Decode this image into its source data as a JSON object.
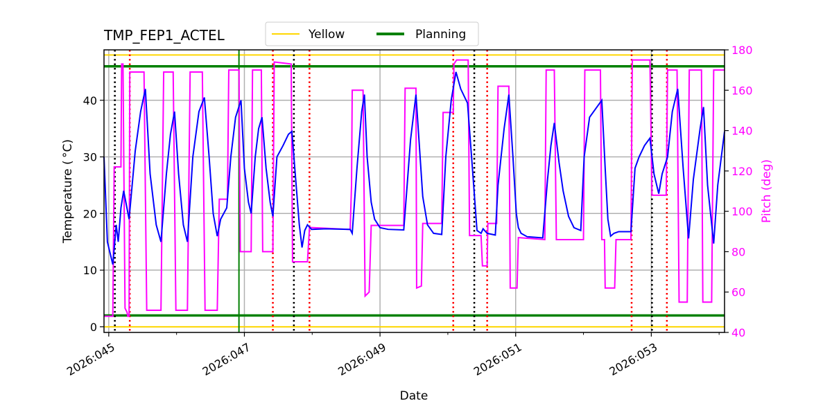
{
  "chart_data": {
    "type": "line",
    "title": "TMP_FEP1_ACTEL",
    "xlabel": "Date",
    "ylabel": "Temperature ($^\\circ$C)",
    "ylabel_display": "Temperature ( °C)",
    "y2label": "Pitch (deg)",
    "xlim": [
      44.93,
      54.08
    ],
    "ylim": [
      -1,
      48.9
    ],
    "y2lim": [
      40,
      180
    ],
    "grid": true,
    "legend_placement": "top-center, above plot",
    "x_ticks": [
      {
        "value": 45,
        "label": "2026:045"
      },
      {
        "value": 47,
        "label": "2026:047"
      },
      {
        "value": 49,
        "label": "2026:049"
      },
      {
        "value": 51,
        "label": "2026:051"
      },
      {
        "value": 53,
        "label": "2026:053"
      }
    ],
    "x_minor_ticks": [
      46,
      48,
      50,
      52,
      54
    ],
    "y_ticks": [
      0,
      10,
      20,
      30,
      40
    ],
    "y2_ticks": [
      40,
      60,
      80,
      100,
      120,
      140,
      160,
      180
    ],
    "colors": {
      "temperature": "#0000ff",
      "pitch": "#ff00ff",
      "yellow": "#ffd700",
      "planning": "#008000",
      "black_lines": "#000000",
      "red_lines": "#ff0000",
      "pitch_axis": "#ff00ff"
    },
    "legend": [
      {
        "name": "Yellow",
        "color": "#ffd700"
      },
      {
        "name": "Planning",
        "color": "#008000"
      }
    ],
    "yellow_limits": [
      0,
      48
    ],
    "planning_limits": [
      2,
      46
    ],
    "planning_vertical_x": 46.92,
    "black_dotted_x": [
      45.09,
      47.73,
      50.39,
      53.01
    ],
    "red_dotted_x": [
      45.31,
      47.42,
      47.96,
      50.08,
      50.58,
      52.71,
      53.23
    ],
    "temperature": [
      [
        44.93,
        30
      ],
      [
        44.98,
        15
      ],
      [
        45.06,
        11
      ],
      [
        45.11,
        18
      ],
      [
        45.14,
        15
      ],
      [
        45.18,
        21
      ],
      [
        45.22,
        24
      ],
      [
        45.3,
        19
      ],
      [
        45.39,
        31
      ],
      [
        45.47,
        38
      ],
      [
        45.54,
        42
      ],
      [
        45.61,
        27
      ],
      [
        45.7,
        18
      ],
      [
        45.77,
        15
      ],
      [
        45.85,
        27
      ],
      [
        45.91,
        34
      ],
      [
        45.97,
        38
      ],
      [
        46.03,
        27
      ],
      [
        46.1,
        18
      ],
      [
        46.16,
        15
      ],
      [
        46.24,
        30
      ],
      [
        46.33,
        38
      ],
      [
        46.41,
        40.5
      ],
      [
        46.48,
        30
      ],
      [
        46.54,
        20
      ],
      [
        46.6,
        16
      ],
      [
        46.65,
        19
      ],
      [
        46.74,
        21
      ],
      [
        46.8,
        30
      ],
      [
        46.87,
        37
      ],
      [
        46.95,
        40
      ],
      [
        47.0,
        28
      ],
      [
        47.06,
        22
      ],
      [
        47.1,
        20
      ],
      [
        47.16,
        30
      ],
      [
        47.21,
        35
      ],
      [
        47.26,
        37
      ],
      [
        47.32,
        28
      ],
      [
        47.38,
        22
      ],
      [
        47.42,
        19.5
      ],
      [
        47.48,
        30
      ],
      [
        47.57,
        32
      ],
      [
        47.65,
        34
      ],
      [
        47.7,
        34.5
      ],
      [
        47.77,
        24
      ],
      [
        47.81,
        18
      ],
      [
        47.85,
        14
      ],
      [
        47.89,
        17
      ],
      [
        47.93,
        18
      ],
      [
        47.99,
        17.2
      ],
      [
        48.2,
        17.3
      ],
      [
        48.56,
        17.2
      ],
      [
        48.59,
        16.5
      ],
      [
        48.66,
        28
      ],
      [
        48.73,
        38
      ],
      [
        48.77,
        41
      ],
      [
        48.81,
        30
      ],
      [
        48.87,
        22
      ],
      [
        48.92,
        19
      ],
      [
        49.0,
        17.5
      ],
      [
        49.12,
        17.2
      ],
      [
        49.35,
        17.1
      ],
      [
        49.4,
        25
      ],
      [
        49.45,
        33
      ],
      [
        49.53,
        41
      ],
      [
        49.58,
        32
      ],
      [
        49.63,
        23
      ],
      [
        49.7,
        18
      ],
      [
        49.79,
        16.5
      ],
      [
        49.91,
        16.3
      ],
      [
        49.97,
        30
      ],
      [
        50.05,
        40
      ],
      [
        50.12,
        45
      ],
      [
        50.19,
        42
      ],
      [
        50.29,
        39.5
      ],
      [
        50.35,
        30
      ],
      [
        50.43,
        17
      ],
      [
        50.49,
        16.5
      ],
      [
        50.52,
        17.3
      ],
      [
        50.58,
        16.5
      ],
      [
        50.7,
        16.2
      ],
      [
        50.74,
        25
      ],
      [
        50.83,
        35
      ],
      [
        50.9,
        41
      ],
      [
        50.96,
        30
      ],
      [
        51.01,
        20
      ],
      [
        51.04,
        17.5
      ],
      [
        51.08,
        16.5
      ],
      [
        51.17,
        15.9
      ],
      [
        51.4,
        15.7
      ],
      [
        51.47,
        26
      ],
      [
        51.52,
        32
      ],
      [
        51.57,
        36
      ],
      [
        51.64,
        29
      ],
      [
        51.7,
        24
      ],
      [
        51.78,
        19.5
      ],
      [
        51.86,
        17.5
      ],
      [
        51.96,
        17
      ],
      [
        52.01,
        30
      ],
      [
        52.09,
        37
      ],
      [
        52.27,
        40
      ],
      [
        52.32,
        28
      ],
      [
        52.36,
        19
      ],
      [
        52.4,
        16
      ],
      [
        52.45,
        16.5
      ],
      [
        52.52,
        16.8
      ],
      [
        52.7,
        16.8
      ],
      [
        52.76,
        28
      ],
      [
        52.82,
        30
      ],
      [
        52.9,
        32
      ],
      [
        52.98,
        33.3
      ],
      [
        53.04,
        27
      ],
      [
        53.11,
        23.5
      ],
      [
        53.16,
        27
      ],
      [
        53.24,
        30
      ],
      [
        53.31,
        38
      ],
      [
        53.39,
        42
      ],
      [
        53.47,
        28
      ],
      [
        53.55,
        15.6
      ],
      [
        53.62,
        26
      ],
      [
        53.72,
        35
      ],
      [
        53.77,
        38.8
      ],
      [
        53.83,
        25
      ],
      [
        53.92,
        14.7
      ],
      [
        53.98,
        25
      ],
      [
        54.08,
        34.5
      ]
    ],
    "pitch": [
      [
        44.93,
        48
      ],
      [
        45.06,
        48
      ],
      [
        45.08,
        122
      ],
      [
        45.18,
        122
      ],
      [
        45.19,
        173
      ],
      [
        45.21,
        173
      ],
      [
        45.24,
        52
      ],
      [
        45.27,
        50
      ],
      [
        45.28,
        48
      ],
      [
        45.3,
        48
      ],
      [
        45.31,
        169
      ],
      [
        45.52,
        169
      ],
      [
        45.56,
        51
      ],
      [
        45.77,
        51
      ],
      [
        45.81,
        169
      ],
      [
        45.95,
        169
      ],
      [
        45.99,
        51
      ],
      [
        46.16,
        51
      ],
      [
        46.2,
        169
      ],
      [
        46.38,
        169
      ],
      [
        46.42,
        51
      ],
      [
        46.6,
        51
      ],
      [
        46.63,
        106
      ],
      [
        46.75,
        106
      ],
      [
        46.77,
        170
      ],
      [
        46.92,
        170
      ],
      [
        46.94,
        80
      ],
      [
        47.1,
        80
      ],
      [
        47.12,
        170
      ],
      [
        47.25,
        170
      ],
      [
        47.27,
        80
      ],
      [
        47.42,
        80
      ],
      [
        47.44,
        174
      ],
      [
        47.69,
        173
      ],
      [
        47.71,
        75
      ],
      [
        47.93,
        75
      ],
      [
        47.96,
        92
      ],
      [
        48.56,
        91
      ],
      [
        48.58,
        113
      ],
      [
        48.59,
        160
      ],
      [
        48.75,
        160
      ],
      [
        48.78,
        58
      ],
      [
        48.84,
        60
      ],
      [
        48.87,
        93
      ],
      [
        49.35,
        93
      ],
      [
        49.37,
        161
      ],
      [
        49.53,
        161
      ],
      [
        49.54,
        62
      ],
      [
        49.61,
        63
      ],
      [
        49.63,
        94
      ],
      [
        49.91,
        94
      ],
      [
        49.93,
        149
      ],
      [
        50.08,
        149
      ],
      [
        50.09,
        173
      ],
      [
        50.13,
        175
      ],
      [
        50.3,
        175
      ],
      [
        50.32,
        88
      ],
      [
        50.49,
        88
      ],
      [
        50.51,
        73
      ],
      [
        50.58,
        73
      ],
      [
        50.59,
        94
      ],
      [
        50.72,
        94
      ],
      [
        50.74,
        162
      ],
      [
        50.9,
        162
      ],
      [
        50.92,
        62
      ],
      [
        51.02,
        62
      ],
      [
        51.04,
        87
      ],
      [
        51.43,
        86
      ],
      [
        51.45,
        170
      ],
      [
        51.57,
        170
      ],
      [
        51.6,
        86
      ],
      [
        52.0,
        86
      ],
      [
        52.02,
        170
      ],
      [
        52.25,
        170
      ],
      [
        52.27,
        86
      ],
      [
        52.31,
        86
      ],
      [
        52.32,
        62
      ],
      [
        52.46,
        62
      ],
      [
        52.48,
        86
      ],
      [
        52.7,
        86
      ],
      [
        52.72,
        175
      ],
      [
        52.98,
        175
      ],
      [
        53.01,
        108
      ],
      [
        53.22,
        108
      ],
      [
        53.24,
        170
      ],
      [
        53.38,
        170
      ],
      [
        53.41,
        55
      ],
      [
        53.53,
        55
      ],
      [
        53.56,
        170
      ],
      [
        53.74,
        170
      ],
      [
        53.76,
        55
      ],
      [
        53.89,
        55
      ],
      [
        53.92,
        170
      ],
      [
        54.08,
        170
      ]
    ]
  }
}
